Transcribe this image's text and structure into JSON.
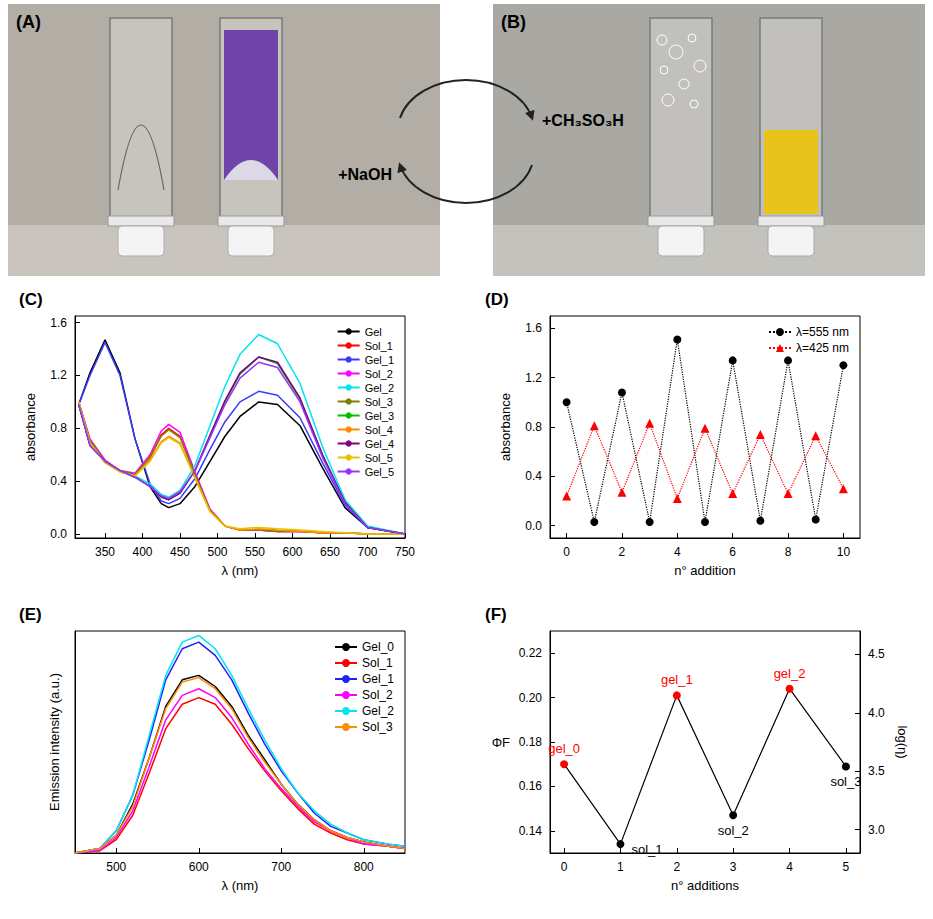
{
  "photo_panels": [
    {
      "panel": "(A)"
    },
    {
      "panel": "(B)"
    }
  ],
  "arrows": [
    {
      "label": "+CH₃SO₃H"
    },
    {
      "label": "+NaOH"
    }
  ],
  "chart_data": [
    {
      "panel": "(C)",
      "type": "line",
      "xlabel": "λ (nm)",
      "ylabel": "absorbance",
      "xlim": [
        310,
        750
      ],
      "xticks": [
        350,
        400,
        450,
        500,
        550,
        600,
        650,
        700,
        750
      ],
      "ylim": [
        -0.03,
        1.65
      ],
      "yticks": [
        {
          "value": 0,
          "label": "0.0"
        },
        0.4,
        0.8,
        1.2,
        1.6
      ],
      "grid": false,
      "legend": "upper right",
      "x": [
        315,
        330,
        350,
        370,
        390,
        410,
        425,
        435,
        450,
        470,
        490,
        510,
        530,
        555,
        580,
        610,
        640,
        670,
        700,
        750
      ],
      "series": [
        {
          "name": "Gel",
          "color": "#000000",
          "line_style": "solid",
          "values": [
            0.98,
            1.22,
            1.47,
            1.22,
            0.72,
            0.36,
            0.23,
            0.2,
            0.23,
            0.36,
            0.55,
            0.74,
            0.89,
            1.0,
            0.98,
            0.82,
            0.5,
            0.2,
            0.05,
            0.0
          ]
        },
        {
          "name": "Sol_1",
          "color": "#ff0000",
          "line_style": "solid",
          "values": [
            1.0,
            0.7,
            0.55,
            0.48,
            0.45,
            0.58,
            0.75,
            0.8,
            0.74,
            0.45,
            0.18,
            0.06,
            0.03,
            0.03,
            0.02,
            0.02,
            0.01,
            0.01,
            0.0,
            0.0
          ]
        },
        {
          "name": "Gel_1",
          "color": "#3a3aff",
          "line_style": "solid",
          "values": [
            0.98,
            1.2,
            1.45,
            1.2,
            0.72,
            0.38,
            0.25,
            0.23,
            0.27,
            0.42,
            0.64,
            0.85,
            1.0,
            1.08,
            1.05,
            0.88,
            0.54,
            0.22,
            0.05,
            0.0
          ]
        },
        {
          "name": "Sol_2",
          "color": "#ff00ff",
          "line_style": "solid",
          "values": [
            1.0,
            0.72,
            0.56,
            0.48,
            0.46,
            0.6,
            0.78,
            0.83,
            0.77,
            0.47,
            0.19,
            0.06,
            0.03,
            0.03,
            0.02,
            0.02,
            0.01,
            0.01,
            0.0,
            0.0
          ]
        },
        {
          "name": "Gel_2",
          "color": "#00e5ee",
          "line_style": "solid",
          "values": [
            0.98,
            0.68,
            0.55,
            0.48,
            0.44,
            0.38,
            0.3,
            0.28,
            0.33,
            0.52,
            0.82,
            1.12,
            1.36,
            1.51,
            1.44,
            1.14,
            0.66,
            0.26,
            0.06,
            0.0
          ]
        },
        {
          "name": "Sol_3",
          "color": "#808000",
          "line_style": "solid",
          "values": [
            1.0,
            0.71,
            0.55,
            0.48,
            0.45,
            0.58,
            0.74,
            0.79,
            0.73,
            0.45,
            0.18,
            0.06,
            0.03,
            0.03,
            0.02,
            0.02,
            0.01,
            0.01,
            0.0,
            0.0
          ]
        },
        {
          "name": "Gel_3",
          "color": "#00c000",
          "line_style": "solid",
          "values": [
            0.98,
            0.67,
            0.55,
            0.48,
            0.43,
            0.36,
            0.28,
            0.26,
            0.31,
            0.48,
            0.74,
            1.0,
            1.21,
            1.34,
            1.29,
            1.02,
            0.6,
            0.24,
            0.05,
            0.0
          ]
        },
        {
          "name": "Sol_4",
          "color": "#ff8c00",
          "line_style": "solid",
          "values": [
            1.0,
            0.69,
            0.54,
            0.47,
            0.44,
            0.56,
            0.7,
            0.74,
            0.69,
            0.43,
            0.17,
            0.06,
            0.03,
            0.04,
            0.03,
            0.02,
            0.01,
            0.01,
            0.0,
            0.0
          ]
        },
        {
          "name": "Gel_4",
          "color": "#800080",
          "line_style": "solid",
          "values": [
            0.98,
            0.67,
            0.55,
            0.48,
            0.43,
            0.36,
            0.28,
            0.26,
            0.31,
            0.48,
            0.75,
            1.01,
            1.22,
            1.34,
            1.3,
            1.03,
            0.6,
            0.24,
            0.05,
            0.0
          ]
        },
        {
          "name": "Sol_5",
          "color": "#e6c200",
          "line_style": "solid",
          "values": [
            1.0,
            0.69,
            0.54,
            0.47,
            0.44,
            0.55,
            0.69,
            0.73,
            0.68,
            0.42,
            0.17,
            0.06,
            0.04,
            0.05,
            0.04,
            0.03,
            0.02,
            0.01,
            0.0,
            0.0
          ]
        },
        {
          "name": "Gel_5",
          "color": "#9933ff",
          "line_style": "solid",
          "values": [
            0.98,
            0.67,
            0.55,
            0.48,
            0.43,
            0.36,
            0.29,
            0.27,
            0.32,
            0.48,
            0.73,
            0.98,
            1.18,
            1.3,
            1.26,
            1.0,
            0.58,
            0.23,
            0.05,
            0.0
          ]
        }
      ]
    },
    {
      "panel": "(D)",
      "type": "line",
      "xlabel": "n° addition",
      "ylabel": "absorbance",
      "xlim": [
        -0.6,
        10.6
      ],
      "xticks": [
        0,
        2,
        4,
        6,
        8,
        10
      ],
      "ylim": [
        -0.1,
        1.7
      ],
      "yticks": [
        {
          "value": 0,
          "label": "0.0"
        },
        0.4,
        0.8,
        1.2,
        1.6
      ],
      "grid": false,
      "legend": "upper right",
      "x": [
        0,
        1,
        2,
        3,
        4,
        5,
        6,
        7,
        8,
        9,
        10
      ],
      "series": [
        {
          "name": "λ=555 nm",
          "color": "#000000",
          "marker": "circle",
          "line_style": "dotted",
          "values": [
            1.0,
            0.03,
            1.08,
            0.03,
            1.51,
            0.03,
            1.34,
            0.04,
            1.34,
            0.05,
            1.3
          ]
        },
        {
          "name": "λ=425 nm",
          "color": "#ff0000",
          "marker": "triangle",
          "line_style": "dotted",
          "values": [
            0.24,
            0.81,
            0.27,
            0.83,
            0.22,
            0.79,
            0.26,
            0.74,
            0.26,
            0.73,
            0.3
          ]
        }
      ]
    },
    {
      "panel": "(E)",
      "type": "line",
      "xlabel": "λ (nm)",
      "ylabel": "Emission intensity (a.u.)",
      "xlim": [
        450,
        850
      ],
      "xticks": [
        500,
        600,
        700,
        800
      ],
      "ylim": [
        0,
        1
      ],
      "tick_labels": "x",
      "grid": false,
      "legend": "upper right",
      "x": [
        450,
        480,
        500,
        520,
        540,
        560,
        580,
        600,
        620,
        640,
        660,
        680,
        700,
        720,
        740,
        760,
        780,
        800,
        830,
        850
      ],
      "series": [
        {
          "name": "Gel_0",
          "color": "#000000",
          "line_style": "solid",
          "values": [
            0,
            0.02,
            0.08,
            0.22,
            0.43,
            0.66,
            0.78,
            0.8,
            0.75,
            0.66,
            0.53,
            0.42,
            0.31,
            0.22,
            0.15,
            0.1,
            0.07,
            0.05,
            0.03,
            0.02
          ]
        },
        {
          "name": "Sol_1",
          "color": "#ff0000",
          "line_style": "solid",
          "values": [
            0,
            0.01,
            0.06,
            0.17,
            0.36,
            0.56,
            0.67,
            0.7,
            0.67,
            0.58,
            0.47,
            0.37,
            0.28,
            0.2,
            0.13,
            0.09,
            0.06,
            0.04,
            0.03,
            0.02
          ]
        },
        {
          "name": "Gel_1",
          "color": "#2020ff",
          "line_style": "solid",
          "values": [
            0,
            0.02,
            0.1,
            0.26,
            0.51,
            0.78,
            0.92,
            0.95,
            0.89,
            0.78,
            0.63,
            0.49,
            0.37,
            0.27,
            0.18,
            0.12,
            0.09,
            0.06,
            0.04,
            0.03
          ]
        },
        {
          "name": "Sol_2",
          "color": "#ff00ff",
          "line_style": "solid",
          "values": [
            0,
            0.01,
            0.07,
            0.19,
            0.39,
            0.6,
            0.71,
            0.74,
            0.7,
            0.61,
            0.49,
            0.38,
            0.29,
            0.21,
            0.14,
            0.1,
            0.07,
            0.04,
            0.03,
            0.02
          ]
        },
        {
          "name": "Gel_2",
          "color": "#00e5ee",
          "line_style": "solid",
          "values": [
            0,
            0.02,
            0.1,
            0.26,
            0.53,
            0.8,
            0.95,
            0.98,
            0.92,
            0.8,
            0.65,
            0.51,
            0.38,
            0.27,
            0.19,
            0.13,
            0.09,
            0.06,
            0.04,
            0.03
          ]
        },
        {
          "name": "Sol_3",
          "color": "#ff8c00",
          "line_style": "solid",
          "values": [
            0,
            0.02,
            0.08,
            0.21,
            0.43,
            0.65,
            0.77,
            0.79,
            0.74,
            0.65,
            0.52,
            0.41,
            0.31,
            0.22,
            0.15,
            0.1,
            0.07,
            0.05,
            0.03,
            0.02
          ]
        }
      ]
    },
    {
      "panel": "(F)",
      "type": "line",
      "xlabel": "n° additions",
      "ylabel": "ΦF",
      "y2label": "log(η)",
      "xlim": [
        -0.25,
        5.25
      ],
      "xticks": [
        0,
        1,
        2,
        3,
        4,
        5
      ],
      "ylim": [
        0.13,
        0.23
      ],
      "yticks": [
        0.14,
        0.16,
        0.18,
        {
          "value": 0.2,
          "label": "0.20"
        },
        0.22
      ],
      "y2lim": [
        2.8,
        4.7
      ],
      "y2ticks": [
        {
          "value": 3,
          "label": "3.0"
        },
        3.5,
        {
          "value": 4,
          "label": "4.0"
        },
        4.5
      ],
      "grid": false,
      "x": [
        0,
        1,
        2,
        3,
        4,
        5
      ],
      "series": [
        {
          "color": "#000000",
          "marker": "circle",
          "line_style": "solid",
          "values": [
            0.17,
            0.134,
            0.201,
            0.147,
            0.204,
            0.169
          ],
          "colors": [
            "#ff0000",
            "#000000",
            "#ff0000",
            "#000000",
            "#ff0000",
            "#000000"
          ],
          "point_labels": [
            "gel_0",
            "sol_1",
            "gel_1",
            "sol_2",
            "gel_2",
            "sol_3"
          ]
        }
      ]
    }
  ]
}
